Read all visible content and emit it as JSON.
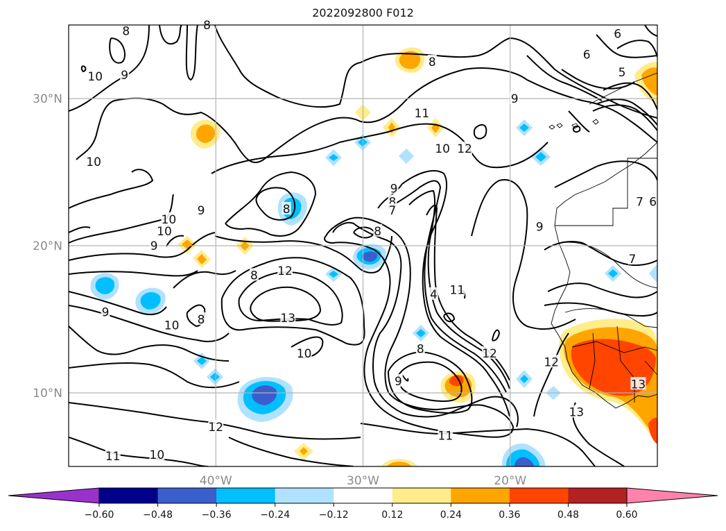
{
  "title": "2022092800 F012",
  "lat_ticks": [
    {
      "id": "lat-30",
      "label": "30°N",
      "value": 30
    },
    {
      "id": "lat-20",
      "label": "20°N",
      "value": 20
    },
    {
      "id": "lat-10",
      "label": "10°N",
      "value": 10
    }
  ],
  "lon_ticks": [
    {
      "id": "lon-40",
      "label": "40°W",
      "value": -40
    },
    {
      "id": "lon-30",
      "label": "30°W",
      "value": -30
    },
    {
      "id": "lon-20",
      "label": "20°W",
      "value": -20
    }
  ],
  "map_extent": {
    "lon_min": -50,
    "lon_max": -10,
    "lat_min": 5,
    "lat_max": 35
  },
  "gridlines": true,
  "colorbar": {
    "orientation": "horizontal",
    "extend": "both",
    "bounds": [
      -0.6,
      -0.48,
      -0.36,
      -0.24,
      -0.12,
      0.12,
      0.24,
      0.36,
      0.48,
      0.6
    ],
    "tick_labels": [
      "−0.60",
      "−0.48",
      "−0.36",
      "−0.24",
      "−0.12",
      "0.12",
      "0.24",
      "0.36",
      "0.48",
      "0.60"
    ],
    "colors": [
      "#9932cc",
      "#00008b",
      "#3a5fcd",
      "#00bfff",
      "#b0e2ff",
      "#ffffff",
      "#ffec8b",
      "#ffa500",
      "#ff4500",
      "#b22222",
      "#ff82ab"
    ]
  },
  "contour_labels": [
    {
      "id": "c-10-a",
      "text": "10",
      "lon": -48.2,
      "lat": 31.5
    },
    {
      "id": "c-8-a",
      "text": "8",
      "lon": -46.1,
      "lat": 34.6
    },
    {
      "id": "c-8-b",
      "text": "8",
      "lon": -40.6,
      "lat": 35.0
    },
    {
      "id": "c-9-a",
      "text": "9",
      "lon": -46.2,
      "lat": 31.6
    },
    {
      "id": "c-8-c",
      "text": "8",
      "lon": -25.3,
      "lat": 32.5
    },
    {
      "id": "c-11-a",
      "text": "11",
      "lon": -26.0,
      "lat": 29.0
    },
    {
      "id": "c-9-b",
      "text": "9",
      "lon": -19.7,
      "lat": 30.0
    },
    {
      "id": "c-6-a",
      "text": "6",
      "lon": -12.7,
      "lat": 34.4
    },
    {
      "id": "c-6-b",
      "text": "6",
      "lon": -14.8,
      "lat": 33.0
    },
    {
      "id": "c-5-a",
      "text": "5",
      "lon": -12.4,
      "lat": 31.8
    },
    {
      "id": "c-10-b",
      "text": "10",
      "lon": -48.3,
      "lat": 25.7
    },
    {
      "id": "c-10-c",
      "text": "10",
      "lon": -24.6,
      "lat": 26.6
    },
    {
      "id": "c-12-a",
      "text": "12",
      "lon": -23.1,
      "lat": 26.6
    },
    {
      "id": "c-9-c",
      "text": "9",
      "lon": -27.9,
      "lat": 23.9
    },
    {
      "id": "c-8-d",
      "text": "8",
      "lon": -28.0,
      "lat": 23.0
    },
    {
      "id": "c-7-a",
      "text": "7",
      "lon": -28.0,
      "lat": 22.4
    },
    {
      "id": "c-9-d",
      "text": "9",
      "lon": -41.0,
      "lat": 22.4
    },
    {
      "id": "c-8-e",
      "text": "8",
      "lon": -35.2,
      "lat": 22.5
    },
    {
      "id": "c-10-d",
      "text": "10",
      "lon": -43.2,
      "lat": 21.8
    },
    {
      "id": "c-10-e",
      "text": "10",
      "lon": -43.5,
      "lat": 21.0
    },
    {
      "id": "c-8-f",
      "text": "8",
      "lon": -29.0,
      "lat": 21.0
    },
    {
      "id": "c-9-e",
      "text": "9",
      "lon": -18.0,
      "lat": 21.3
    },
    {
      "id": "c-9-f",
      "text": "9",
      "lon": -44.2,
      "lat": 20.0
    },
    {
      "id": "c-12-b",
      "text": "12",
      "lon": -35.3,
      "lat": 18.3
    },
    {
      "id": "c-8-g",
      "text": "8",
      "lon": -37.4,
      "lat": 18.0
    },
    {
      "id": "c-7-b",
      "text": "7",
      "lon": -11.2,
      "lat": 23.0
    },
    {
      "id": "c-6-c",
      "text": "6",
      "lon": -10.3,
      "lat": 23.0
    },
    {
      "id": "c-7-c",
      "text": "7",
      "lon": -11.7,
      "lat": 19.1
    },
    {
      "id": "c-11-b",
      "text": "11",
      "lon": -23.6,
      "lat": 17.0
    },
    {
      "id": "c-4-a",
      "text": "4",
      "lon": -25.2,
      "lat": 16.7
    },
    {
      "id": "c-9-g",
      "text": "9",
      "lon": -47.5,
      "lat": 15.5
    },
    {
      "id": "c-8-h",
      "text": "8",
      "lon": -41.0,
      "lat": 15.0
    },
    {
      "id": "c-13-a",
      "text": "13",
      "lon": -35.1,
      "lat": 15.1
    },
    {
      "id": "c-10-f",
      "text": "10",
      "lon": -43.0,
      "lat": 14.6
    },
    {
      "id": "c-8-i",
      "text": "8",
      "lon": -26.1,
      "lat": 13.0
    },
    {
      "id": "c-10-g",
      "text": "10",
      "lon": -34.0,
      "lat": 12.7
    },
    {
      "id": "c-12-c",
      "text": "12",
      "lon": -21.4,
      "lat": 12.7
    },
    {
      "id": "c-12-d",
      "text": "12",
      "lon": -17.2,
      "lat": 12.1
    },
    {
      "id": "c-9-h",
      "text": "9",
      "lon": -27.6,
      "lat": 10.8
    },
    {
      "id": "c-13-b",
      "text": "13",
      "lon": -11.3,
      "lat": 10.6
    },
    {
      "id": "c-13-c",
      "text": "13",
      "lon": -15.5,
      "lat": 8.7
    },
    {
      "id": "c-12-e",
      "text": "12",
      "lon": -40.0,
      "lat": 7.7
    },
    {
      "id": "c-11-c",
      "text": "11",
      "lon": -24.4,
      "lat": 7.1
    },
    {
      "id": "c-11-d",
      "text": "11",
      "lon": -47.0,
      "lat": 5.7
    },
    {
      "id": "c-10-h",
      "text": "10",
      "lon": -44.0,
      "lat": 5.8
    }
  ]
}
